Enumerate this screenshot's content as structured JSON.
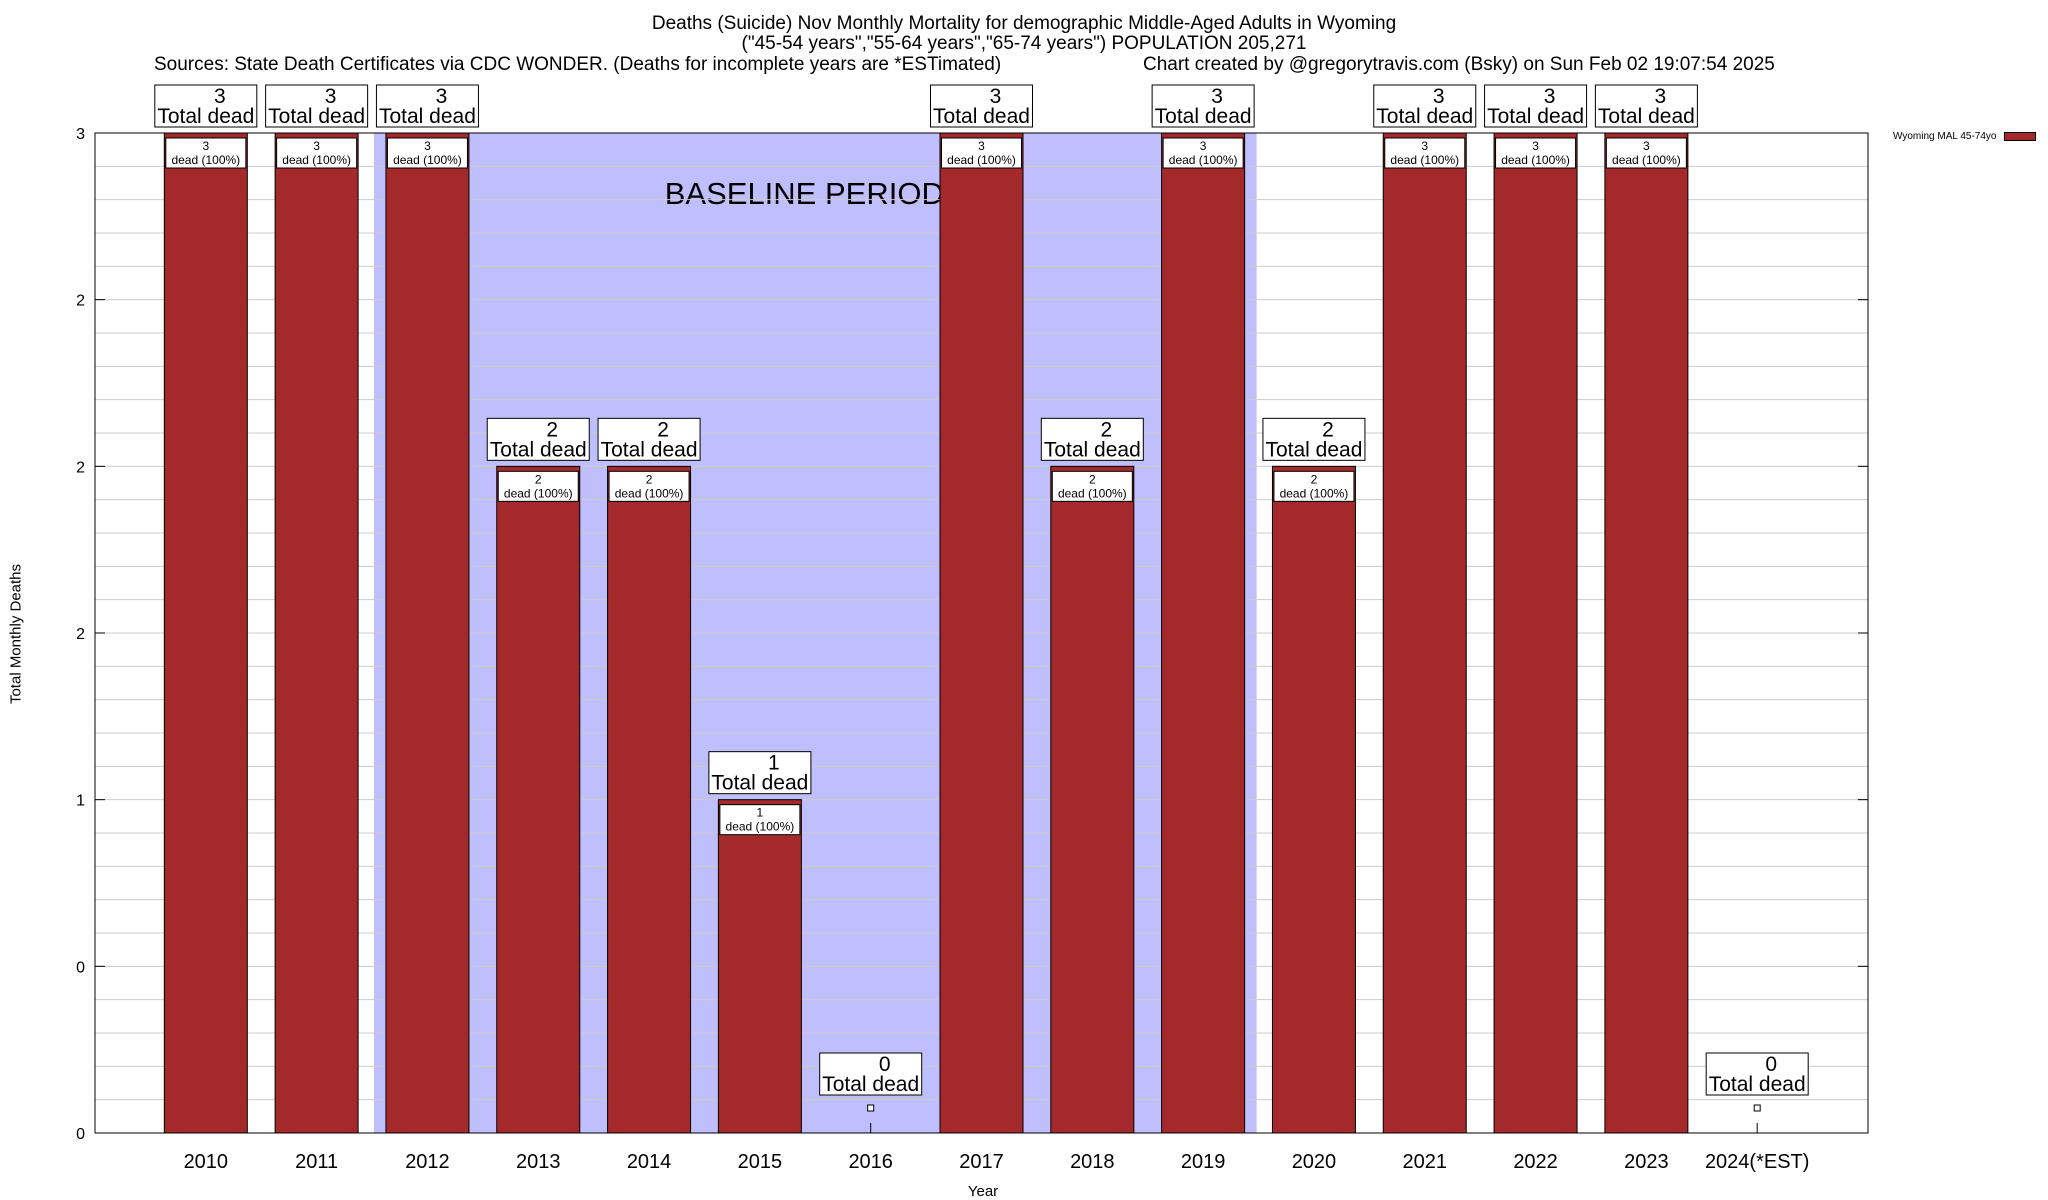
{
  "title_line1": "Deaths (Suicide) Nov Monthly Mortality for demographic Middle-Aged Adults in Wyoming",
  "title_line2": "(\"45-54 years\",\"55-64 years\",\"65-74 years\") POPULATION 205,271",
  "sources": "Sources: State Death Certificates via CDC WONDER. (Deaths for incomplete years are *ESTimated)",
  "credit": "Chart created by @gregorytravis.com (Bsky) on Sun Feb 02 19:07:54 2025",
  "colors": {
    "bar": "#a3292b",
    "baseline_band": "#bfbffd"
  },
  "chart_data": {
    "type": "bar",
    "title": "Deaths (Suicide) Nov Monthly Mortality for demographic Middle-Aged Adults in Wyoming",
    "xlabel": "Year",
    "ylabel": "Total Monthly Deaths",
    "categories": [
      "2010",
      "2011",
      "2012",
      "2013",
      "2014",
      "2015",
      "2016",
      "2017",
      "2018",
      "2019",
      "2020",
      "2021",
      "2022",
      "2023",
      "2024(*EST)"
    ],
    "series": [
      {
        "name": "Wyoming MAL 45-74yo",
        "values": [
          3,
          3,
          3,
          2,
          2,
          1,
          0,
          3,
          2,
          3,
          2,
          3,
          3,
          3,
          0
        ]
      }
    ],
    "ylim": [
      0,
      3
    ],
    "yticks": [
      {
        "value": 0,
        "label": "0"
      },
      {
        "value": 0.5,
        "label": "0"
      },
      {
        "value": 1,
        "label": "1"
      },
      {
        "value": 1.5,
        "label": "2"
      },
      {
        "value": 2,
        "label": "2"
      },
      {
        "value": 2.5,
        "label": "2"
      },
      {
        "value": 3,
        "label": "3"
      }
    ],
    "grid": true,
    "legend_position": "top-right",
    "baseline_period": {
      "label": "BASELINE PERIOD",
      "start": "2012",
      "end": "2019"
    },
    "total_dead_label": "Total dead",
    "percent_label": "dead (100%)"
  }
}
